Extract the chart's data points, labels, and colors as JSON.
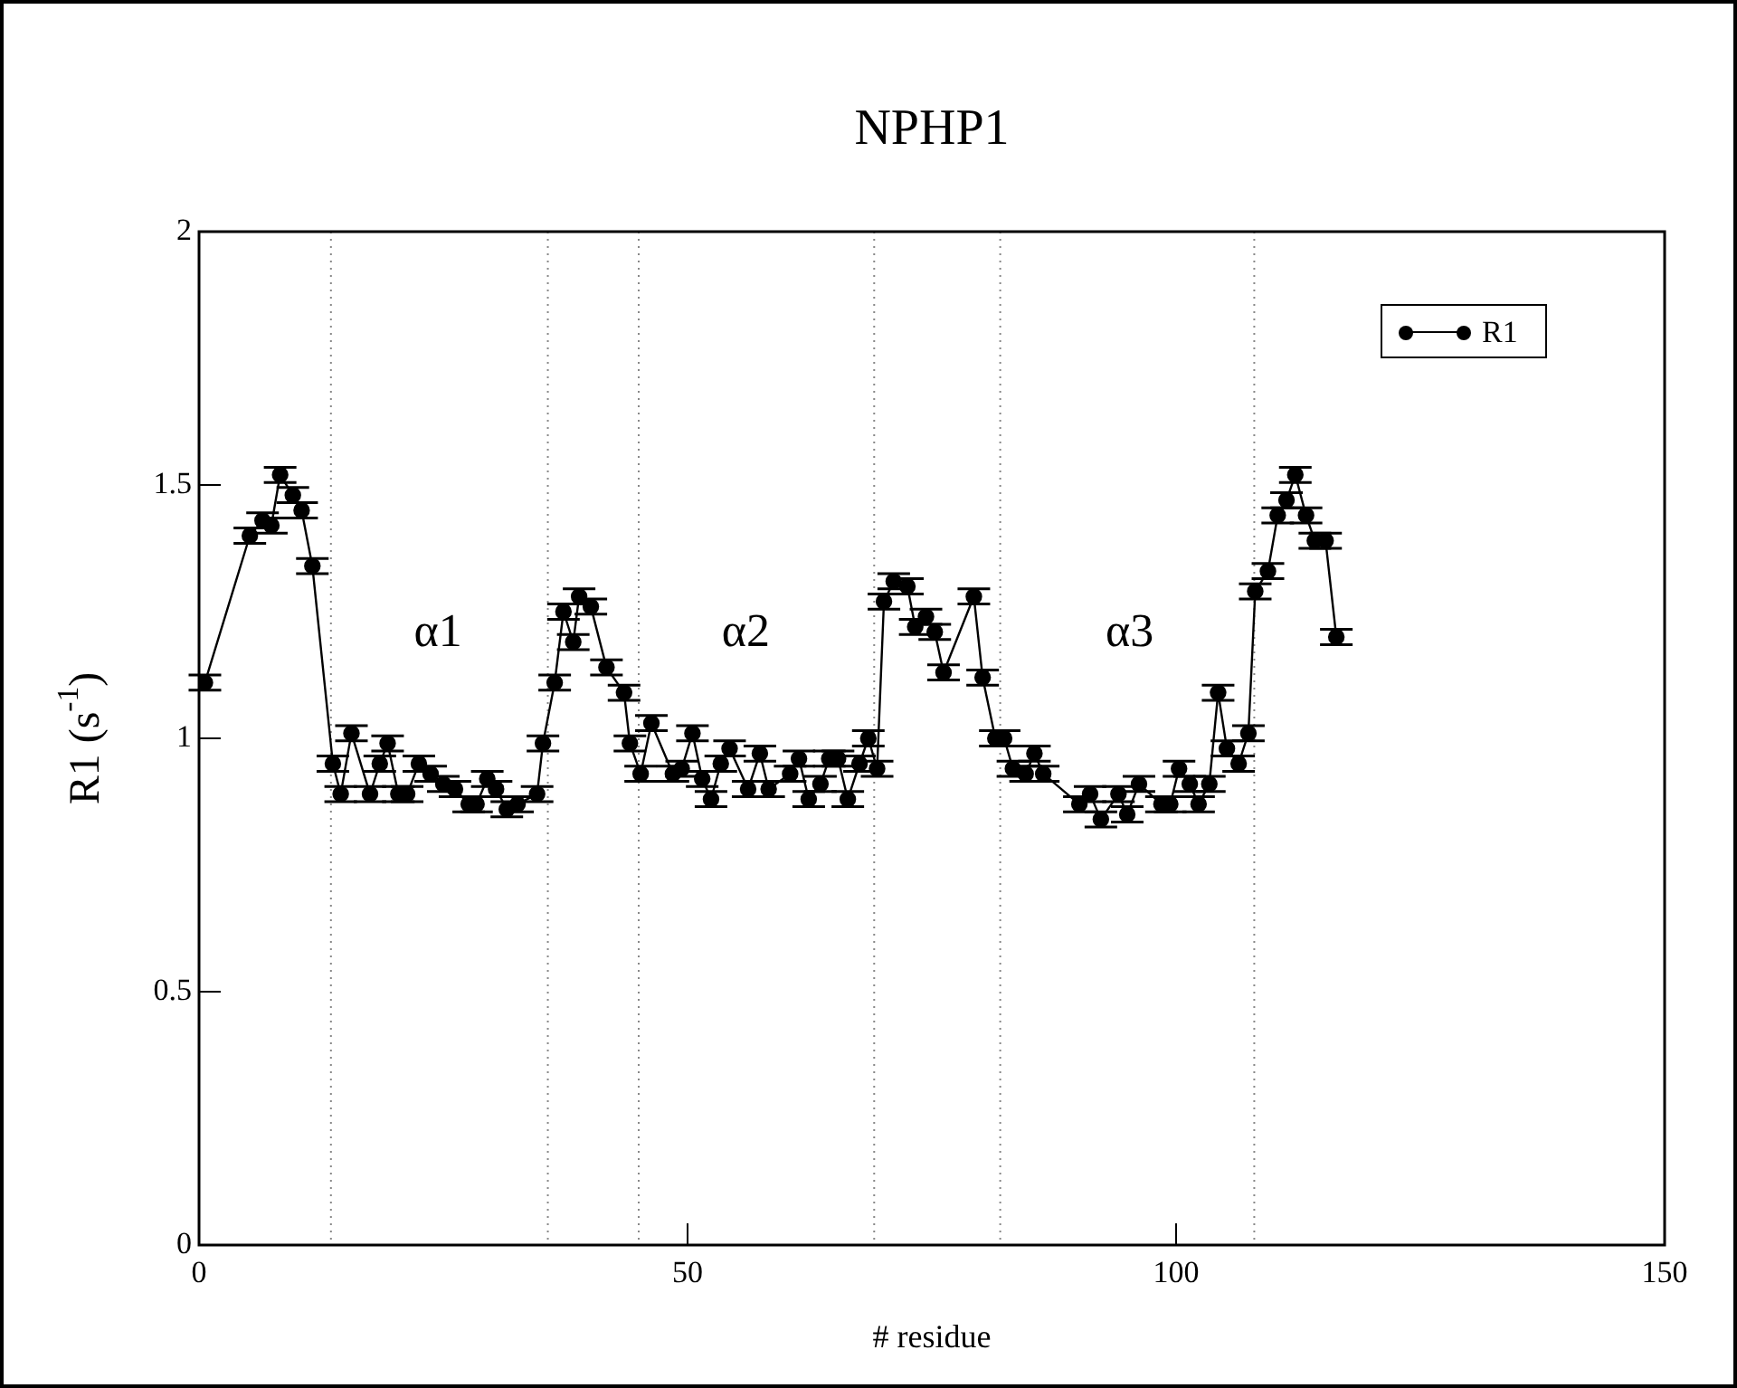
{
  "chart_data": {
    "type": "line",
    "title": "NPHP1",
    "xlabel": "# residue",
    "ylabel": "R1 (s$^{-1}$)",
    "xlim": [
      0,
      150
    ],
    "xticks": [
      0,
      50,
      100,
      150
    ],
    "ylim": [
      0,
      2
    ],
    "yticks": [
      0,
      0.5,
      1,
      1.5,
      2
    ],
    "grid": false,
    "legend": "top right",
    "marker": "circle",
    "line_style": "solid",
    "series": [
      {
        "name": "R1",
        "color": "#000000",
        "x": [
          0.6,
          5.2,
          6.5,
          7.4,
          8.3,
          9.6,
          10.5,
          11.6,
          13.7,
          14.5,
          15.6,
          17.5,
          18.5,
          19.3,
          20.4,
          21.3,
          22.5,
          23.7,
          25,
          26.2,
          27.6,
          28.4,
          29.5,
          30.4,
          31.5,
          32.6,
          34.6,
          35.2,
          36.4,
          37.3,
          38.3,
          38.9,
          40.1,
          41.7,
          43.5,
          44.1,
          45.2,
          46.3,
          48.5,
          49.4,
          50.5,
          51.5,
          52.4,
          53.4,
          54.3,
          56.2,
          57.4,
          58.3,
          60.5,
          61.4,
          62.4,
          63.6,
          64.5,
          65.4,
          66.4,
          67.6,
          68.5,
          69.4,
          70.1,
          71.1,
          72.5,
          73.3,
          74.4,
          75.3,
          76.2,
          79.3,
          80.2,
          81.5,
          82.4,
          83.3,
          84.6,
          85.5,
          86.4,
          90.1,
          91.2,
          92.3,
          94.1,
          95,
          96.2,
          98.5,
          99.4,
          100.3,
          101.4,
          102.3,
          103.4,
          104.3,
          105.2,
          106.4,
          107.4,
          108.1,
          109.4,
          110.4,
          111.3,
          112.2,
          113.3,
          114.2,
          115.3,
          116.4
        ],
        "values": [
          1.11,
          1.4,
          1.43,
          1.42,
          1.52,
          1.48,
          1.45,
          1.34,
          0.95,
          0.89,
          1.01,
          0.89,
          0.95,
          0.99,
          0.89,
          0.89,
          0.95,
          0.93,
          0.91,
          0.9,
          0.87,
          0.87,
          0.92,
          0.9,
          0.86,
          0.87,
          0.89,
          0.99,
          1.11,
          1.25,
          1.19,
          1.28,
          1.26,
          1.14,
          1.09,
          0.99,
          0.93,
          1.03,
          0.93,
          0.94,
          1.01,
          0.92,
          0.88,
          0.95,
          0.98,
          0.9,
          0.97,
          0.9,
          0.93,
          0.96,
          0.88,
          0.91,
          0.96,
          0.96,
          0.88,
          0.95,
          1,
          0.94,
          1.27,
          1.31,
          1.3,
          1.22,
          1.24,
          1.21,
          1.13,
          1.28,
          1.12,
          1,
          1,
          0.94,
          0.93,
          0.97,
          0.93,
          0.87,
          0.89,
          0.84,
          0.89,
          0.85,
          0.91,
          0.87,
          0.87,
          0.94,
          0.91,
          0.87,
          0.91,
          1.09,
          0.98,
          0.95,
          1.01,
          1.29,
          1.33,
          1.44,
          1.47,
          1.52,
          1.44,
          1.39,
          1.39,
          1.2
        ],
        "errors": [
          0.015,
          0.015,
          0.015,
          0.015,
          0.015,
          0.015,
          0.015,
          0.015,
          0.015,
          0.015,
          0.015,
          0.015,
          0.015,
          0.015,
          0.015,
          0.015,
          0.015,
          0.015,
          0.015,
          0.015,
          0.015,
          0.015,
          0.015,
          0.015,
          0.015,
          0.015,
          0.015,
          0.015,
          0.015,
          0.015,
          0.015,
          0.015,
          0.015,
          0.015,
          0.015,
          0.015,
          0.015,
          0.015,
          0.015,
          0.015,
          0.015,
          0.015,
          0.015,
          0.015,
          0.015,
          0.015,
          0.015,
          0.015,
          0.015,
          0.015,
          0.015,
          0.015,
          0.015,
          0.015,
          0.015,
          0.015,
          0.015,
          0.015,
          0.015,
          0.015,
          0.015,
          0.015,
          0.015,
          0.015,
          0.015,
          0.015,
          0.015,
          0.015,
          0.015,
          0.015,
          0.015,
          0.015,
          0.015,
          0.015,
          0.015,
          0.015,
          0.015,
          0.015,
          0.015,
          0.015,
          0.015,
          0.015,
          0.015,
          0.015,
          0.015,
          0.015,
          0.015,
          0.015,
          0.015,
          0.015,
          0.015,
          0.015,
          0.015,
          0.015,
          0.015,
          0.015,
          0.015,
          0.015
        ]
      }
    ],
    "ref_lines": [
      {
        "axis": "x",
        "value": 13.5,
        "color": "#888888",
        "line_style": "dotted"
      },
      {
        "axis": "x",
        "value": 35.7,
        "color": "#888888",
        "line_style": "dotted"
      },
      {
        "axis": "x",
        "value": 45,
        "color": "#888888",
        "line_style": "dotted"
      },
      {
        "axis": "x",
        "value": 69.1,
        "color": "#888888",
        "line_style": "dotted"
      },
      {
        "axis": "x",
        "value": 82,
        "color": "#888888",
        "line_style": "dotted"
      },
      {
        "axis": "x",
        "value": 108,
        "color": "#888888",
        "line_style": "dotted"
      }
    ],
    "annotations": [
      "α1",
      "α2",
      "α3"
    ]
  }
}
